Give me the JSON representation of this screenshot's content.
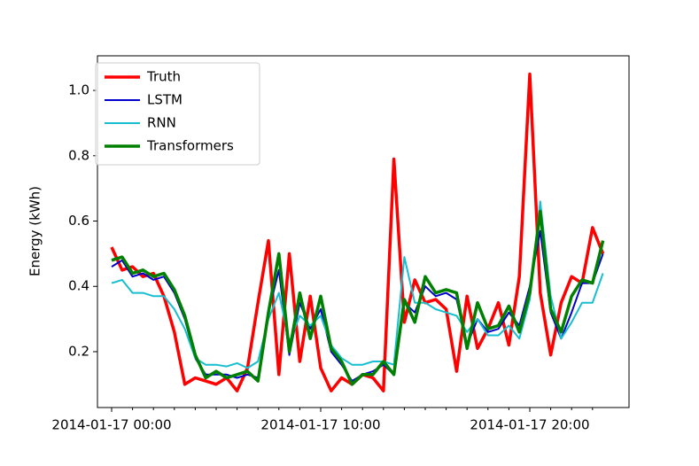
{
  "chart_data": {
    "type": "line",
    "y_label": "Energy (kWh)",
    "x": [
      "2014-01-17 00:00",
      "2014-01-17 00:30",
      "2014-01-17 01:00",
      "2014-01-17 01:30",
      "2014-01-17 02:00",
      "2014-01-17 02:30",
      "2014-01-17 03:00",
      "2014-01-17 03:30",
      "2014-01-17 04:00",
      "2014-01-17 04:30",
      "2014-01-17 05:00",
      "2014-01-17 05:30",
      "2014-01-17 06:00",
      "2014-01-17 06:30",
      "2014-01-17 07:00",
      "2014-01-17 07:30",
      "2014-01-17 08:00",
      "2014-01-17 08:30",
      "2014-01-17 09:00",
      "2014-01-17 09:30",
      "2014-01-17 10:00",
      "2014-01-17 10:30",
      "2014-01-17 11:00",
      "2014-01-17 11:30",
      "2014-01-17 12:00",
      "2014-01-17 12:30",
      "2014-01-17 13:00",
      "2014-01-17 13:30",
      "2014-01-17 14:00",
      "2014-01-17 14:30",
      "2014-01-17 15:00",
      "2014-01-17 15:30",
      "2014-01-17 16:00",
      "2014-01-17 16:30",
      "2014-01-17 17:00",
      "2014-01-17 17:30",
      "2014-01-17 18:00",
      "2014-01-17 18:30",
      "2014-01-17 19:00",
      "2014-01-17 19:30",
      "2014-01-17 20:00",
      "2014-01-17 20:30",
      "2014-01-17 21:00",
      "2014-01-17 21:30",
      "2014-01-17 22:00",
      "2014-01-17 22:30",
      "2014-01-17 23:00",
      "2014-01-17 23:30"
    ],
    "xticks": [
      "2014-01-17 00:00",
      "2014-01-17 10:00",
      "2014-01-17 20:00"
    ],
    "series": [
      {
        "name": "Truth",
        "color": "#ff0000",
        "values": [
          0.52,
          0.45,
          0.46,
          0.43,
          0.44,
          0.37,
          0.26,
          0.1,
          0.12,
          0.11,
          0.1,
          0.12,
          0.08,
          0.15,
          0.35,
          0.54,
          0.13,
          0.5,
          0.17,
          0.37,
          0.15,
          0.08,
          0.12,
          0.1,
          0.13,
          0.12,
          0.08,
          0.79,
          0.29,
          0.42,
          0.35,
          0.36,
          0.33,
          0.14,
          0.37,
          0.21,
          0.27,
          0.35,
          0.22,
          0.43,
          1.05,
          0.38,
          0.19,
          0.35,
          0.43,
          0.41,
          0.58,
          0.5
        ]
      },
      {
        "name": "LSTM",
        "color": "#0000cc",
        "values": [
          0.46,
          0.48,
          0.43,
          0.44,
          0.42,
          0.43,
          0.38,
          0.3,
          0.18,
          0.13,
          0.13,
          0.13,
          0.12,
          0.13,
          0.12,
          0.32,
          0.45,
          0.19,
          0.35,
          0.27,
          0.33,
          0.2,
          0.16,
          0.11,
          0.13,
          0.14,
          0.16,
          0.13,
          0.35,
          0.32,
          0.4,
          0.37,
          0.38,
          0.36,
          0.22,
          0.3,
          0.26,
          0.27,
          0.32,
          0.28,
          0.4,
          0.57,
          0.32,
          0.24,
          0.32,
          0.41,
          0.41,
          0.5
        ]
      },
      {
        "name": "RNN",
        "color": "#17becf",
        "values": [
          0.41,
          0.42,
          0.38,
          0.38,
          0.37,
          0.37,
          0.33,
          0.27,
          0.18,
          0.16,
          0.16,
          0.155,
          0.165,
          0.15,
          0.17,
          0.3,
          0.38,
          0.23,
          0.31,
          0.28,
          0.31,
          0.22,
          0.18,
          0.16,
          0.16,
          0.17,
          0.17,
          0.16,
          0.49,
          0.35,
          0.35,
          0.33,
          0.32,
          0.31,
          0.26,
          0.3,
          0.25,
          0.25,
          0.28,
          0.24,
          0.36,
          0.66,
          0.37,
          0.24,
          0.29,
          0.35,
          0.35,
          0.44
        ]
      },
      {
        "name": "Transformers",
        "color": "#008000",
        "values": [
          0.48,
          0.49,
          0.44,
          0.45,
          0.43,
          0.44,
          0.39,
          0.31,
          0.19,
          0.12,
          0.14,
          0.12,
          0.13,
          0.14,
          0.11,
          0.32,
          0.5,
          0.2,
          0.38,
          0.24,
          0.37,
          0.21,
          0.17,
          0.1,
          0.13,
          0.13,
          0.17,
          0.13,
          0.36,
          0.29,
          0.43,
          0.38,
          0.39,
          0.38,
          0.21,
          0.35,
          0.27,
          0.28,
          0.34,
          0.26,
          0.38,
          0.63,
          0.33,
          0.26,
          0.37,
          0.42,
          0.41,
          0.54
        ]
      }
    ],
    "ylim": [
      0.029,
      1.106
    ],
    "yticks": [
      0.2,
      0.4,
      0.6,
      0.8,
      {
        "value": 1,
        "label": "1.0"
      }
    ],
    "legend": "upper left"
  }
}
